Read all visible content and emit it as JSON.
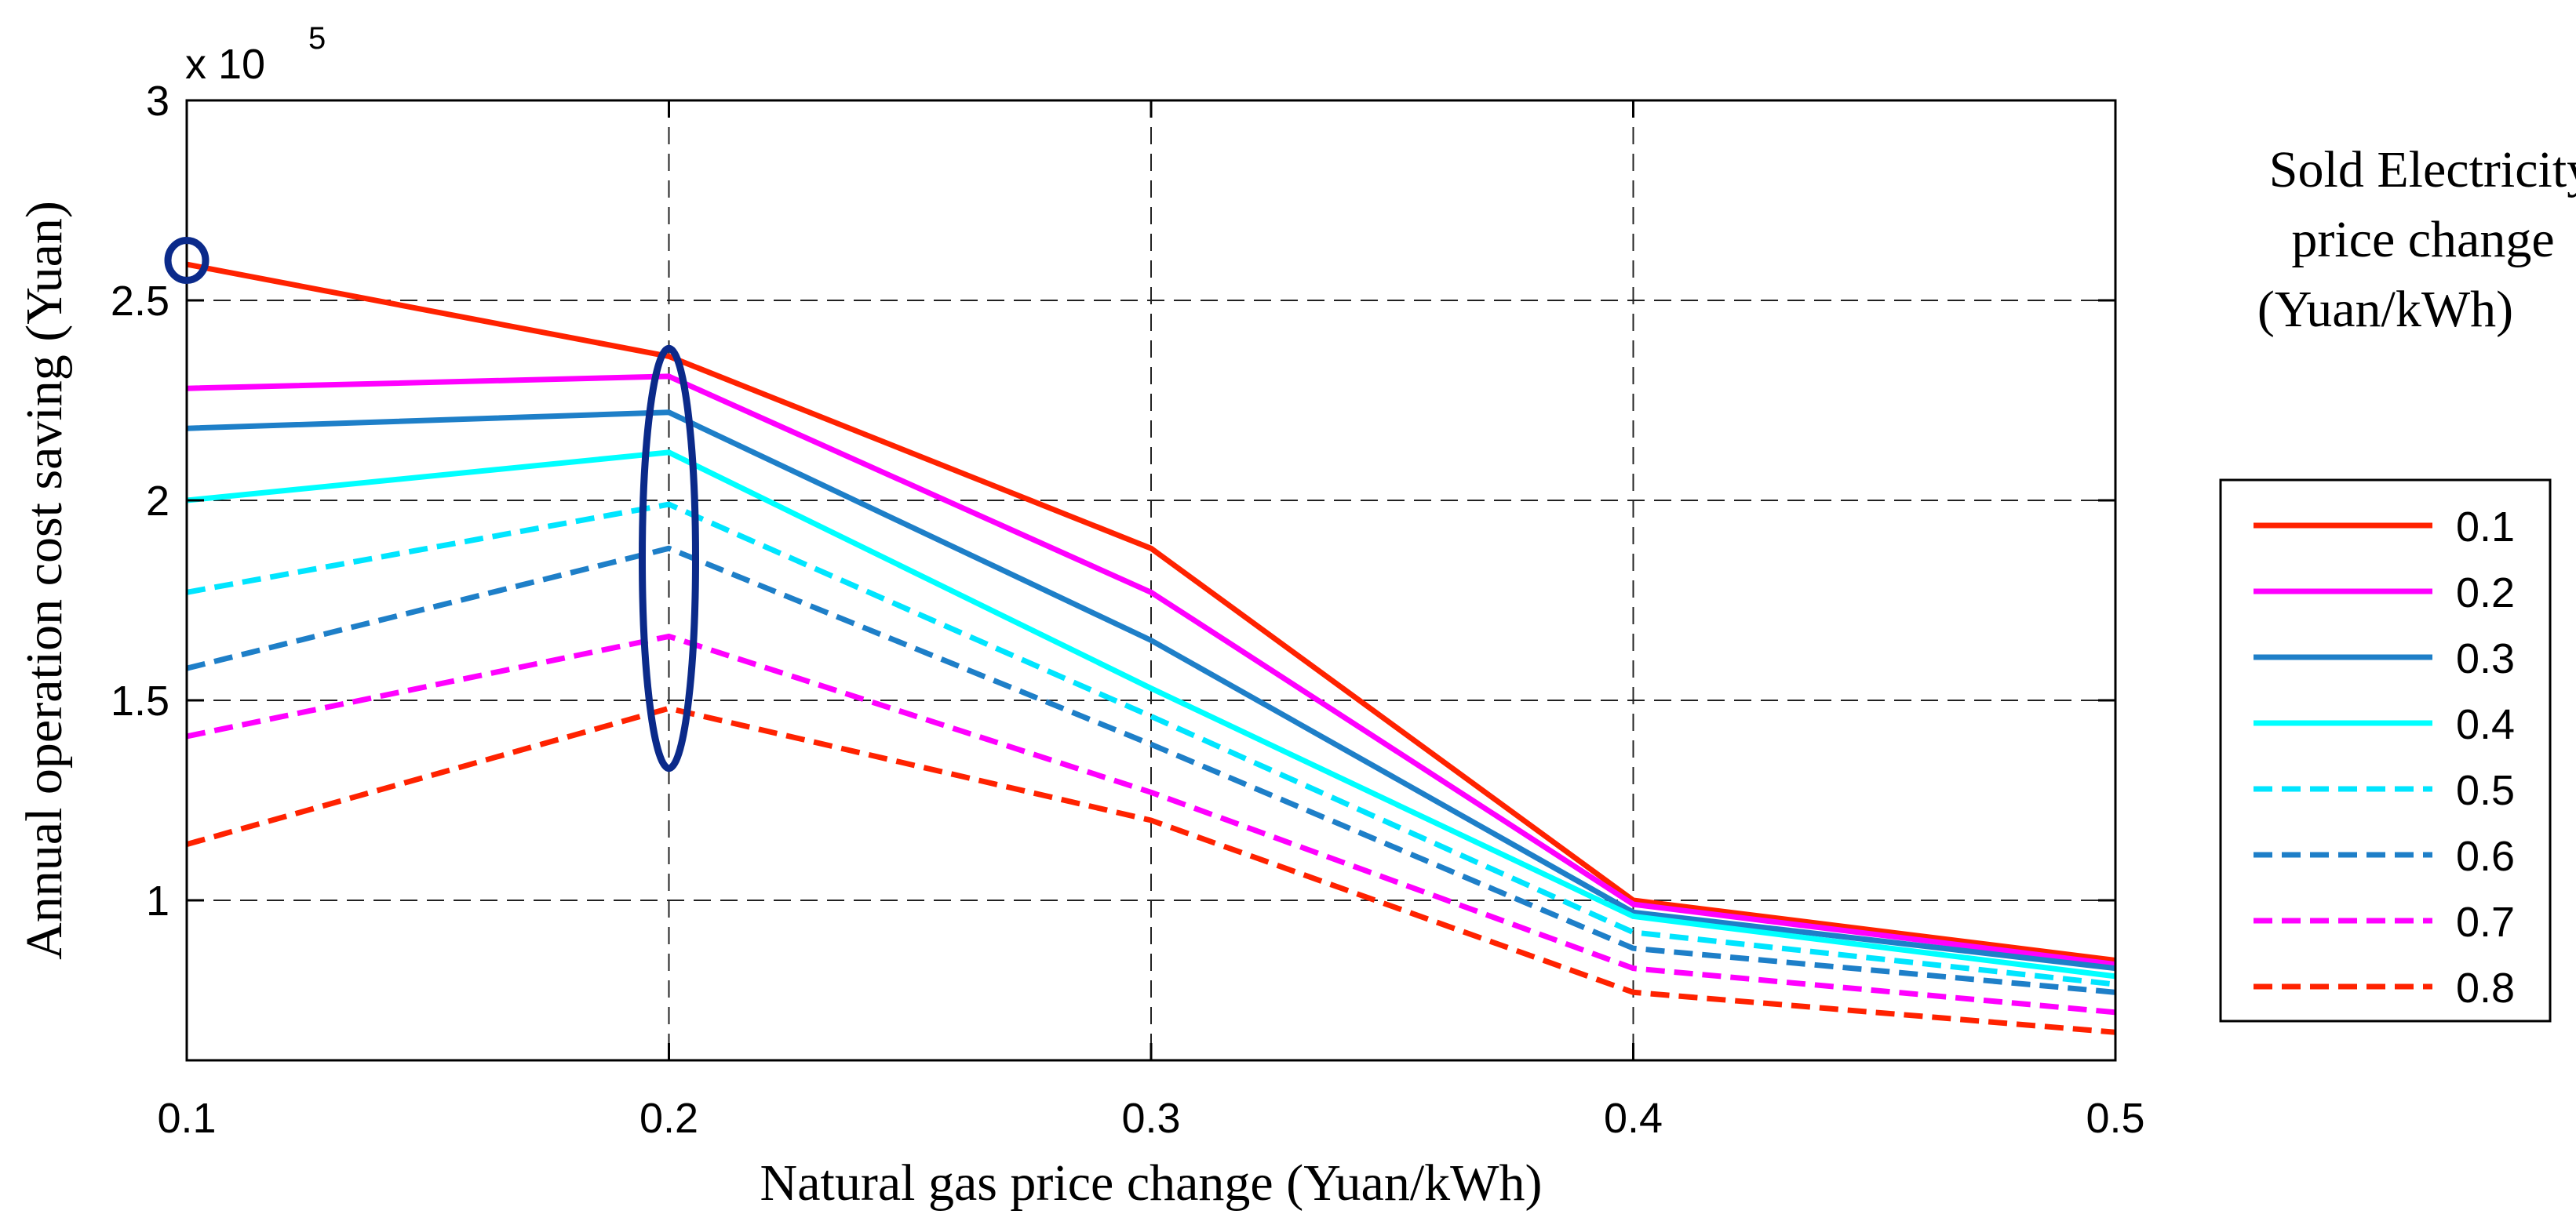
{
  "chart_data": {
    "type": "line",
    "title": "",
    "xlabel": "Natural gas price change (Yuan/kWh)",
    "ylabel": "Annual operation cost saving (Yuan)",
    "y_exponent_label": "x 10",
    "y_exponent_power": "5",
    "x": [
      0.1,
      0.2,
      0.3,
      0.4,
      0.5
    ],
    "x_tick_labels": [
      "0.1",
      "0.2",
      "0.3",
      "0.4",
      "0.5"
    ],
    "y_ticks": [
      1.0,
      1.5,
      2.0,
      2.5,
      3.0
    ],
    "y_tick_labels": [
      "1",
      "1.5",
      "2",
      "2.5",
      "3"
    ],
    "xlim": [
      0.1,
      0.5
    ],
    "ylim": [
      0.6,
      3.0
    ],
    "y_units": "x 10^5 Yuan",
    "grid": true,
    "legend_title_lines": [
      "Sold Electricity",
      "price change",
      "(Yuan/kWh)"
    ],
    "legend_position": "right",
    "series": [
      {
        "name": "0.1",
        "color": "#ff2200",
        "dash": "solid",
        "values": [
          2.59,
          2.36,
          1.88,
          1.0,
          0.85
        ]
      },
      {
        "name": "0.2",
        "color": "#ff00ff",
        "dash": "solid",
        "values": [
          2.28,
          2.31,
          1.77,
          0.99,
          0.84
        ]
      },
      {
        "name": "0.3",
        "color": "#1e7fc8",
        "dash": "solid",
        "values": [
          2.18,
          2.22,
          1.65,
          0.97,
          0.83
        ]
      },
      {
        "name": "0.4",
        "color": "#00ffff",
        "dash": "solid",
        "values": [
          2.0,
          2.12,
          1.53,
          0.96,
          0.81
        ]
      },
      {
        "name": "0.5",
        "color": "#00e5ff",
        "dash": "dashed",
        "values": [
          1.77,
          1.99,
          1.46,
          0.92,
          0.79
        ]
      },
      {
        "name": "0.6",
        "color": "#1e7fc8",
        "dash": "dashed",
        "values": [
          1.58,
          1.88,
          1.39,
          0.88,
          0.77
        ]
      },
      {
        "name": "0.7",
        "color": "#ff00ff",
        "dash": "dashed",
        "values": [
          1.41,
          1.66,
          1.27,
          0.83,
          0.72
        ]
      },
      {
        "name": "0.8",
        "color": "#ff2200",
        "dash": "dashed",
        "values": [
          1.14,
          1.48,
          1.2,
          0.77,
          0.67
        ]
      }
    ],
    "annotations": [
      {
        "type": "ellipse-highlight",
        "color": "#0b2a8a",
        "x": 0.1,
        "y_range": [
          2.55,
          2.65
        ]
      },
      {
        "type": "ellipse-highlight",
        "color": "#0b2a8a",
        "x": 0.2,
        "y_range": [
          1.33,
          2.38
        ]
      }
    ]
  }
}
